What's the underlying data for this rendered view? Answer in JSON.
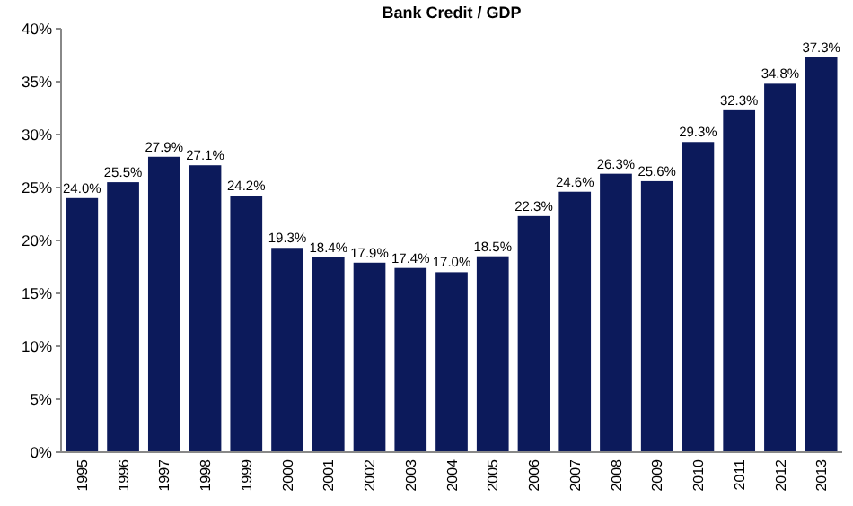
{
  "chart_data": {
    "type": "bar",
    "title": "Bank Credit / GDP",
    "categories": [
      "1995",
      "1996",
      "1997",
      "1998",
      "1999",
      "2000",
      "2001",
      "2002",
      "2003",
      "2004",
      "2005",
      "2006",
      "2007",
      "2008",
      "2009",
      "2010",
      "2011",
      "2012",
      "2013"
    ],
    "values": [
      24.0,
      25.5,
      27.9,
      27.1,
      24.2,
      19.3,
      18.4,
      17.9,
      17.4,
      17.0,
      18.5,
      22.3,
      24.6,
      26.3,
      25.6,
      29.3,
      32.3,
      34.8,
      37.3
    ],
    "value_labels": [
      "24.0%",
      "25.5%",
      "27.9%",
      "27.1%",
      "24.2%",
      "19.3%",
      "18.4%",
      "17.9%",
      "17.4%",
      "17.0%",
      "18.5%",
      "22.3%",
      "24.6%",
      "26.3%",
      "25.6%",
      "29.3%",
      "32.3%",
      "34.8%",
      "37.3%"
    ],
    "color": "#0c1a5b",
    "ylim": [
      0,
      40
    ],
    "yticks": [
      {
        "value": 0,
        "label": "0%"
      },
      {
        "value": 5,
        "label": "5%"
      },
      {
        "value": 10,
        "label": "10%"
      },
      {
        "value": 15,
        "label": "15%"
      },
      {
        "value": 20,
        "label": "20%"
      },
      {
        "value": 25,
        "label": "25%"
      },
      {
        "value": 30,
        "label": "30%"
      },
      {
        "value": 35,
        "label": "35%"
      },
      {
        "value": 40,
        "label": "40%"
      }
    ],
    "grid": false
  }
}
